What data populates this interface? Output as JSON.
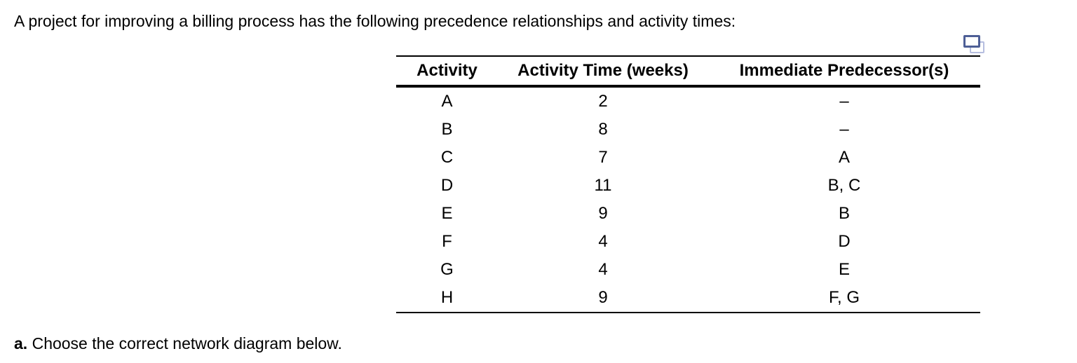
{
  "intro": "A project for improving a billing process has the following precedence relationships and activity times:",
  "table": {
    "headers": {
      "activity": "Activity",
      "time": "Activity Time (weeks)",
      "predecessors": "Immediate Predecessor(s)"
    },
    "rows": [
      {
        "activity": "A",
        "time": "2",
        "predecessors": "–"
      },
      {
        "activity": "B",
        "time": "8",
        "predecessors": "–"
      },
      {
        "activity": "C",
        "time": "7",
        "predecessors": "A"
      },
      {
        "activity": "D",
        "time": "11",
        "predecessors": "B, C"
      },
      {
        "activity": "E",
        "time": "9",
        "predecessors": "B"
      },
      {
        "activity": "F",
        "time": "4",
        "predecessors": "D"
      },
      {
        "activity": "G",
        "time": "4",
        "predecessors": "E"
      },
      {
        "activity": "H",
        "time": "9",
        "predecessors": "F, G"
      }
    ]
  },
  "icon": {
    "name": "open-table-in-new-window",
    "front_border_color": "#4e5f96",
    "back_border_color": "#b6bedf"
  },
  "question": {
    "label": "a.",
    "text": " Choose the correct network diagram below."
  }
}
